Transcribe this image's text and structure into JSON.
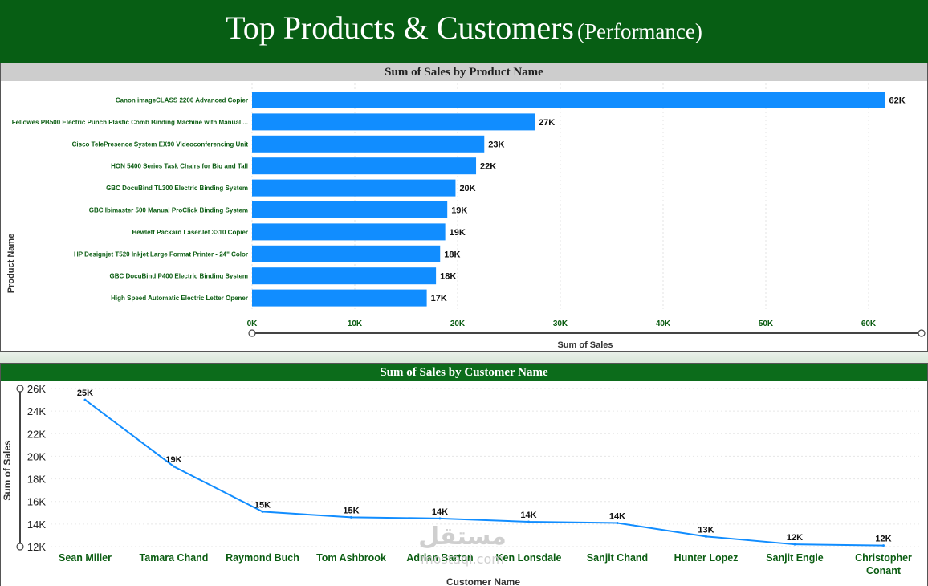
{
  "header": {
    "title": "Top Products & Customers",
    "subtitle": "(Performance)"
  },
  "watermark": {
    "arabic": "مستقل",
    "latin": "mostaql.com"
  },
  "colors": {
    "header_bg": "#075e14",
    "bar": "#118dff",
    "line": "#118dff",
    "label_green": "#0b5d12"
  },
  "chart_data": [
    {
      "type": "bar",
      "orientation": "horizontal",
      "title": "Sum of Sales by Product Name",
      "xlabel": "Sum of Sales",
      "ylabel": "Product Name",
      "xlim": [
        0,
        65000
      ],
      "xticks": [
        0,
        10000,
        20000,
        30000,
        40000,
        50000,
        60000
      ],
      "xtick_labels": [
        "0K",
        "10K",
        "20K",
        "30K",
        "40K",
        "50K",
        "60K"
      ],
      "categories": [
        "Canon imageCLASS 2200 Advanced Copier",
        "Fellowes PB500 Electric Punch Plastic Comb Binding Machine with Manual ...",
        "Cisco TelePresence System EX90 Videoconferencing Unit",
        "HON 5400 Series Task Chairs for Big and Tall",
        "GBC DocuBind TL300 Electric Binding System",
        "GBC Ibimaster 500 Manual ProClick Binding System",
        "Hewlett Packard LaserJet 3310 Copier",
        "HP Designjet T520 Inkjet Large Format Printer - 24\" Color",
        "GBC DocuBind P400 Electric Binding System",
        "High Speed Automatic Electric Letter Opener"
      ],
      "values": [
        61600,
        27500,
        22600,
        21800,
        19800,
        19000,
        18800,
        18300,
        17900,
        17000
      ],
      "data_labels": [
        "62K",
        "27K",
        "23K",
        "22K",
        "20K",
        "19K",
        "19K",
        "18K",
        "18K",
        "17K"
      ]
    },
    {
      "type": "line",
      "title": "Sum of Sales by Customer Name",
      "xlabel": "Customer Name",
      "ylabel": "Sum of Sales",
      "ylim": [
        12000,
        26000
      ],
      "yticks": [
        12000,
        14000,
        16000,
        18000,
        20000,
        22000,
        24000,
        26000
      ],
      "ytick_labels": [
        "12K",
        "14K",
        "16K",
        "18K",
        "20K",
        "22K",
        "24K",
        "26K"
      ],
      "categories": [
        "Sean Miller",
        "Tamara Chand",
        "Raymond Buch",
        "Tom Ashbrook",
        "Adrian Barton",
        "Ken Lonsdale",
        "Sanjit Chand",
        "Hunter Lopez",
        "Sanjit Engle",
        "Christopher Conant"
      ],
      "values": [
        25000,
        19100,
        15100,
        14600,
        14500,
        14200,
        14100,
        12900,
        12200,
        12100
      ],
      "data_labels": [
        "25K",
        "19K",
        "15K",
        "15K",
        "14K",
        "14K",
        "14K",
        "13K",
        "12K",
        "12K"
      ]
    }
  ]
}
